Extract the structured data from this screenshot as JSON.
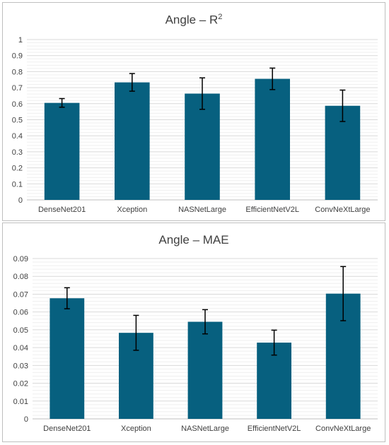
{
  "chart_data": [
    {
      "type": "bar",
      "title": "Angle – R",
      "title_superscript": "2",
      "categories": [
        "DenseNet201",
        "Xception",
        "NASNetLarge",
        "EfficientNetV2L",
        "ConvNeXtLarge"
      ],
      "values": [
        0.605,
        0.733,
        0.663,
        0.755,
        0.587
      ],
      "error": [
        0.027,
        0.055,
        0.098,
        0.067,
        0.098
      ],
      "ylim": [
        0,
        1
      ],
      "yticks": [
        "0",
        "0.1",
        "0.2",
        "0.3",
        "0.4",
        "0.5",
        "0.6",
        "0.7",
        "0.8",
        "0.9",
        "1"
      ],
      "minor_grid_per_major": 5,
      "grid": true,
      "xlabel": "",
      "ylabel": ""
    },
    {
      "type": "bar",
      "title": "Angle – MAE",
      "categories": [
        "DenseNet201",
        "Xception",
        "NASNetLarge",
        "EfficientNetV2L",
        "ConvNeXtLarge"
      ],
      "values": [
        0.0677,
        0.0483,
        0.0545,
        0.0428,
        0.0703
      ],
      "error": [
        0.0059,
        0.0098,
        0.0068,
        0.007,
        0.0152
      ],
      "ylim": [
        0,
        0.09
      ],
      "yticks": [
        "0",
        "0.01",
        "0.02",
        "0.03",
        "0.04",
        "0.05",
        "0.06",
        "0.07",
        "0.08",
        "0.09"
      ],
      "minor_grid_per_major": 5,
      "grid": true,
      "xlabel": "",
      "ylabel": ""
    }
  ],
  "colors": {
    "bar": "#07607f",
    "major_grid": "#d9d9d9",
    "minor_grid": "#efefef",
    "error_bar": "#000000",
    "text": "#404040"
  }
}
